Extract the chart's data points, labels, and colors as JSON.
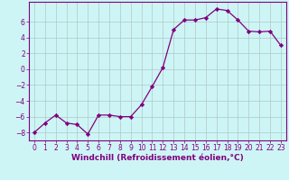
{
  "x": [
    0,
    1,
    2,
    3,
    4,
    5,
    6,
    7,
    8,
    9,
    10,
    11,
    12,
    13,
    14,
    15,
    16,
    17,
    18,
    19,
    20,
    21,
    22,
    23
  ],
  "y": [
    -8,
    -6.8,
    -5.8,
    -6.8,
    -7.0,
    -8.2,
    -5.8,
    -5.8,
    -6.0,
    -6.0,
    -4.5,
    -2.2,
    0.2,
    5.0,
    6.2,
    6.2,
    6.5,
    7.6,
    7.4,
    6.2,
    4.8,
    4.7,
    4.8,
    3.0
  ],
  "xlabel": "Windchill (Refroidissement éolien,°C)",
  "xlim_left": -0.5,
  "xlim_right": 23.5,
  "ylim": [
    -9.0,
    8.5
  ],
  "yticks": [
    -8,
    -6,
    -4,
    -2,
    0,
    2,
    4,
    6
  ],
  "xticks": [
    0,
    1,
    2,
    3,
    4,
    5,
    6,
    7,
    8,
    9,
    10,
    11,
    12,
    13,
    14,
    15,
    16,
    17,
    18,
    19,
    20,
    21,
    22,
    23
  ],
  "line_color": "#800080",
  "marker": "D",
  "bg_color": "#cef5f5",
  "grid_color": "#b0c8c8",
  "font_color": "#800080",
  "tick_fontsize": 5.5,
  "xlabel_fontsize": 6.5
}
